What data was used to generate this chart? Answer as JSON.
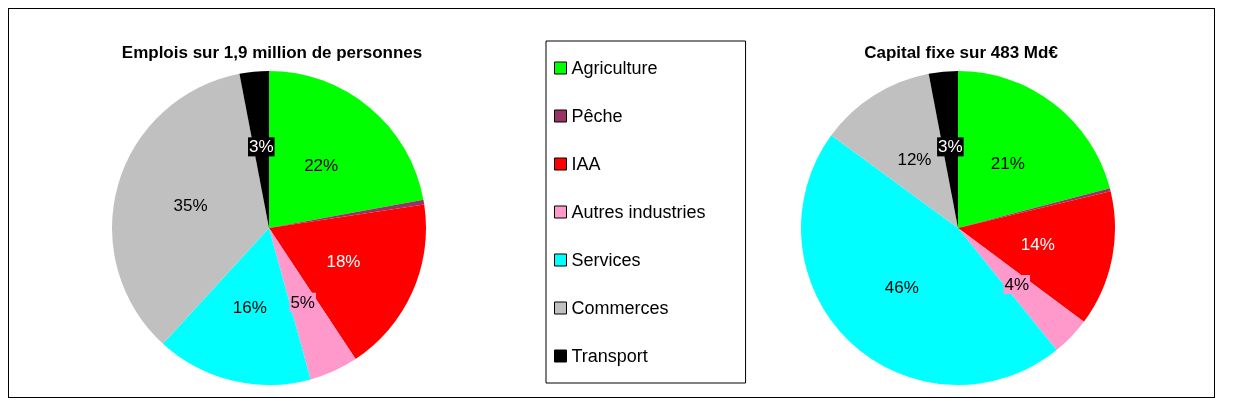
{
  "chart_data": {
    "type": "pie",
    "categories": [
      "Agriculture",
      "Pêche",
      "IAA",
      "Autres industries",
      "Services",
      "Commerces",
      "Transport"
    ],
    "colors": [
      "#00ff00",
      "#993366",
      "#ff0000",
      "#ff99cc",
      "#00ffff",
      "#c0c0c0",
      "#000000"
    ],
    "legend": "right",
    "series": [
      {
        "name": "Emplois sur 1,9 million de personnes",
        "values": [
          22,
          0.5,
          18,
          5,
          16,
          35,
          3
        ],
        "value_labels": [
          "22%",
          null,
          "18%",
          "5%",
          "16%",
          "35%",
          "3%"
        ]
      },
      {
        "name": "Capital fixe sur 483 Md€",
        "values": [
          21,
          0.3,
          14,
          4,
          46,
          12,
          3
        ],
        "value_labels": [
          "21%",
          null,
          "14%",
          "4%",
          "46%",
          "12%",
          "3%"
        ]
      }
    ]
  }
}
